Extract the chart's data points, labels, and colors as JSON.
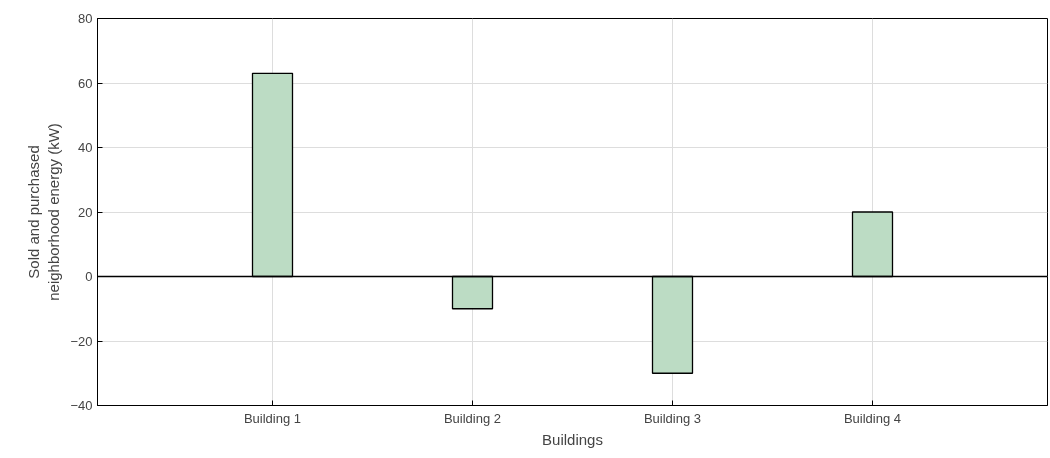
{
  "chart_data": {
    "type": "bar",
    "categories": [
      "Building 1",
      "Building 2",
      "Building 3",
      "Building 4"
    ],
    "values": [
      63,
      -10,
      -30,
      20
    ],
    "color": "#bcdcc4",
    "xlabel": "Buildings",
    "ylabel": "Sold and purchased\nneighborhood energy (kW)",
    "ylim": [
      -40,
      80
    ],
    "yticks": [
      -40,
      -20,
      0,
      20,
      40,
      60,
      80
    ],
    "grid": true
  }
}
